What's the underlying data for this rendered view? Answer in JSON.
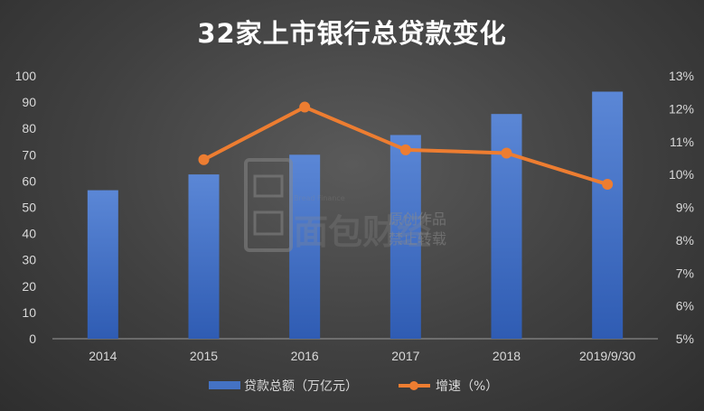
{
  "chart_data": {
    "type": "bar",
    "title": "32家上市银行总贷款变化",
    "categories": [
      "2014",
      "2015",
      "2016",
      "2017",
      "2018",
      "2019/9/30"
    ],
    "series": [
      {
        "name": "贷款总额（万亿元）",
        "type": "bar",
        "axis": "left",
        "color": "#4472c4",
        "values": [
          56.5,
          62.5,
          70.0,
          77.5,
          85.5,
          94.0
        ]
      },
      {
        "name": "增速（%）",
        "type": "line",
        "axis": "right",
        "color": "#ed7d31",
        "values": [
          null,
          10.45,
          12.05,
          10.75,
          10.65,
          9.7
        ]
      }
    ],
    "left_axis": {
      "ylim": [
        0,
        100
      ],
      "ticks": [
        "0",
        "10",
        "20",
        "30",
        "40",
        "50",
        "60",
        "70",
        "80",
        "90",
        "100"
      ]
    },
    "right_axis": {
      "ylim": [
        5,
        13
      ],
      "ticks": [
        "5%",
        "6%",
        "7%",
        "8%",
        "9%",
        "10%",
        "11%",
        "12%",
        "13%"
      ]
    },
    "grid": false,
    "legend_position": "bottom"
  },
  "watermark": {
    "brand_en": "Bread Finance",
    "brand_cn": "面包财经",
    "text_line1": "原创作品",
    "text_line2": "禁止转载"
  }
}
